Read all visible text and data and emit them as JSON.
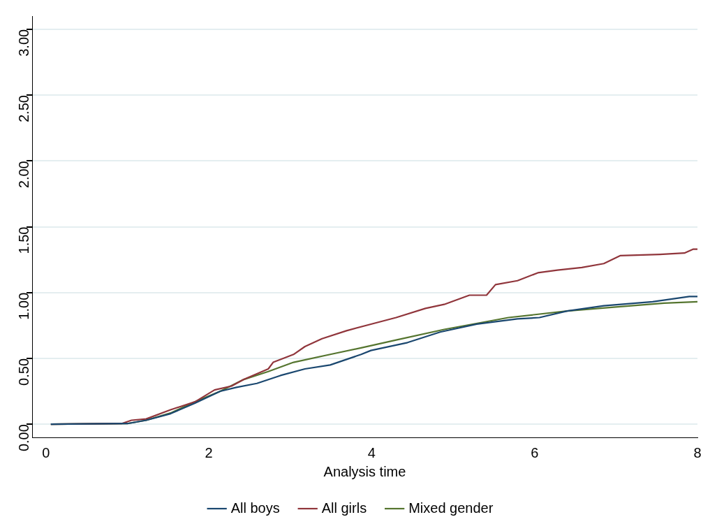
{
  "chart_data": {
    "type": "line",
    "xlabel": "Analysis time",
    "xlim": [
      -0.17,
      8.0
    ],
    "ylim": [
      -0.1,
      3.1
    ],
    "xticks": [
      0,
      2,
      4,
      6,
      8
    ],
    "yticks": [
      {
        "value": 0,
        "label": "0.00"
      },
      {
        "value": 0.5,
        "label": "0.50"
      },
      {
        "value": 1,
        "label": "1.00"
      },
      {
        "value": 1.5,
        "label": "1.50"
      },
      {
        "value": 2,
        "label": "2.00"
      },
      {
        "value": 2.5,
        "label": "2.50"
      },
      {
        "value": 3,
        "label": "3.00"
      }
    ],
    "grid": "y",
    "legend": "bottom",
    "marker": "none",
    "line_style": "solid",
    "series": [
      {
        "name": "All boys",
        "color": "#1a476f",
        "x": [
          0.06,
          1.0,
          1.23,
          1.53,
          1.83,
          2.14,
          2.34,
          2.59,
          2.88,
          3.18,
          3.49,
          3.87,
          3.99,
          4.44,
          4.84,
          5.29,
          5.79,
          6.06,
          6.4,
          6.85,
          7.45,
          7.9,
          8.0
        ],
        "values": [
          0,
          0.005,
          0.03,
          0.08,
          0.16,
          0.25,
          0.28,
          0.31,
          0.37,
          0.42,
          0.45,
          0.53,
          0.56,
          0.62,
          0.7,
          0.76,
          0.8,
          0.81,
          0.86,
          0.9,
          0.93,
          0.97,
          0.97
        ]
      },
      {
        "name": "All girls",
        "color": "#90353b",
        "x": [
          0.06,
          0.93,
          1.05,
          1.23,
          1.53,
          1.83,
          2.07,
          2.28,
          2.43,
          2.73,
          2.79,
          3.04,
          3.18,
          3.39,
          3.69,
          3.99,
          4.3,
          4.66,
          4.89,
          5.2,
          5.41,
          5.52,
          5.79,
          6.04,
          6.28,
          6.58,
          6.85,
          7.05,
          7.54,
          7.84,
          7.95,
          8.0
        ],
        "values": [
          0,
          0.005,
          0.03,
          0.04,
          0.11,
          0.17,
          0.26,
          0.29,
          0.34,
          0.42,
          0.47,
          0.53,
          0.59,
          0.65,
          0.71,
          0.76,
          0.81,
          0.88,
          0.91,
          0.98,
          0.98,
          1.06,
          1.09,
          1.15,
          1.17,
          1.19,
          1.22,
          1.28,
          1.29,
          1.3,
          1.33,
          1.33
        ]
      },
      {
        "name": "Mixed gender",
        "color": "#55752f",
        "x": [
          0.06,
          1.0,
          1.23,
          1.53,
          1.83,
          2.14,
          2.43,
          2.73,
          3.04,
          3.49,
          3.87,
          4.3,
          4.89,
          5.68,
          6.4,
          7.0,
          7.59,
          8.0
        ],
        "values": [
          0,
          0.005,
          0.03,
          0.085,
          0.17,
          0.25,
          0.34,
          0.4,
          0.47,
          0.53,
          0.58,
          0.64,
          0.72,
          0.81,
          0.86,
          0.89,
          0.92,
          0.93
        ]
      }
    ]
  }
}
